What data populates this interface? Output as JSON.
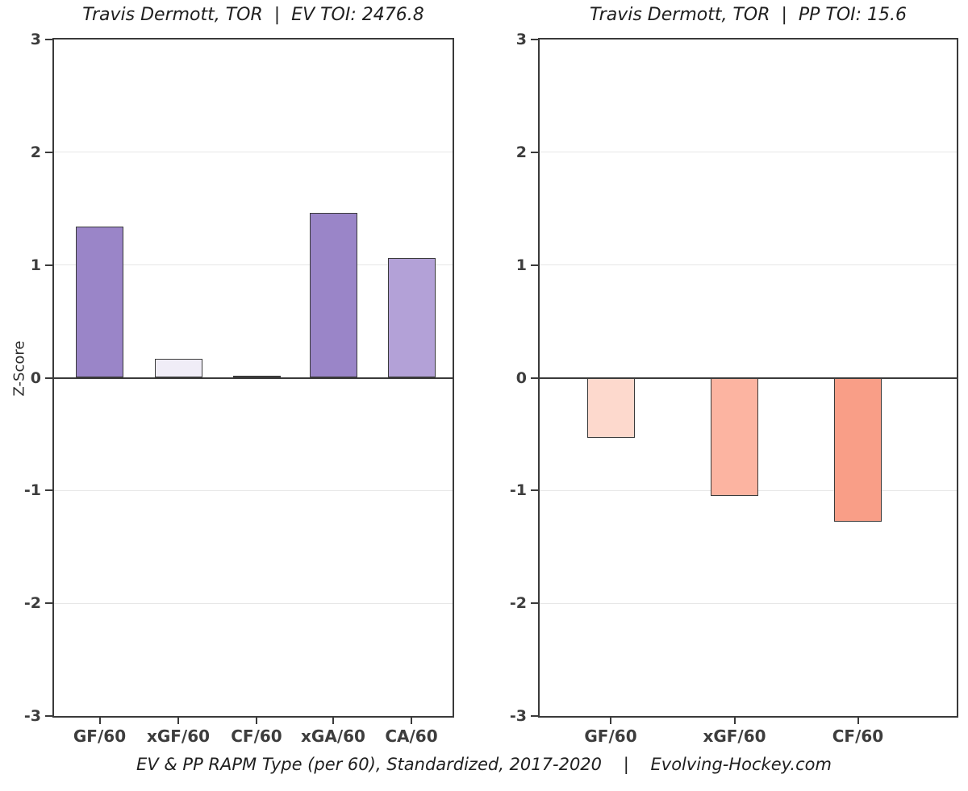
{
  "ylabel": "Z-Score",
  "caption": "EV & PP RAPM Type (per 60), Standardized, 2017-2020    |    Evolving-Hockey.com",
  "colors": {
    "axis": "#3a3a3a",
    "grid": "#e7e7e7",
    "background": "#ffffff",
    "tick_label": "#3d3d3d"
  },
  "chart_data": [
    {
      "type": "bar",
      "title": "Travis Dermott, TOR  |  EV TOI: 2476.8",
      "categories": [
        "GF/60",
        "xGF/60",
        "CF/60",
        "xGA/60",
        "CA/60"
      ],
      "values": [
        1.34,
        0.17,
        0.02,
        1.46,
        1.06
      ],
      "bar_colors": [
        "#9a85c8",
        "#f0edf7",
        "#f8f6fa",
        "#9a85c8",
        "#b3a1d7"
      ],
      "ylabel": "Z-Score",
      "xlabel": "",
      "ylim": [
        -3,
        3
      ],
      "yticks": [
        -3,
        -2,
        -1,
        0,
        1,
        2,
        3
      ],
      "grid": "horizontal-major",
      "legend": "none"
    },
    {
      "type": "bar",
      "title": "Travis Dermott, TOR  |  PP TOI: 15.6",
      "categories": [
        "GF/60",
        "xGF/60",
        "CF/60"
      ],
      "values": [
        -0.53,
        -1.05,
        -1.28
      ],
      "bar_colors": [
        "#fdd9cd",
        "#fcb4a1",
        "#f99e87"
      ],
      "ylabel": "Z-Score",
      "xlabel": "",
      "ylim": [
        -3,
        3
      ],
      "yticks": [
        -3,
        -2,
        -1,
        0,
        1,
        2,
        3
      ],
      "grid": "horizontal-major",
      "legend": "none"
    }
  ]
}
